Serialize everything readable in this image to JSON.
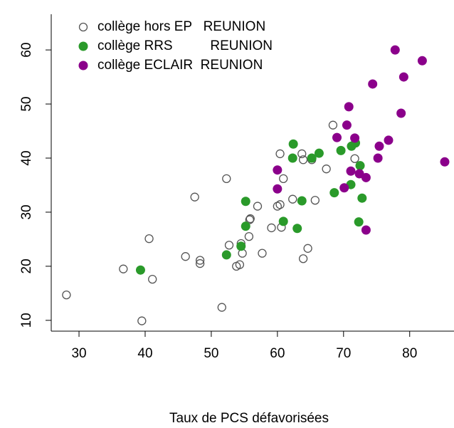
{
  "chart_data": {
    "type": "scatter",
    "xlabel": "Taux de PCS défavorisées",
    "xlim": [
      25.8,
      86.7
    ],
    "ylim": [
      8,
      66.6
    ],
    "xticks": [
      30,
      40,
      50,
      60,
      70,
      80
    ],
    "yticks": [
      10,
      20,
      30,
      40,
      50,
      60
    ],
    "legend": "top-left",
    "series": [
      {
        "name": "collège hors EP   REUNION",
        "color": "#555555",
        "marker": "open",
        "x": [
          28.1,
          36.7,
          39.5,
          40.6,
          41.1,
          46.1,
          48.3,
          48.3,
          47.5,
          51.6,
          52.3,
          52.7,
          53.8,
          54.3,
          54.5,
          54.7,
          55.7,
          55.8,
          55.9,
          57.0,
          57.7,
          59.1,
          60.0,
          60.4,
          60.4,
          60.6,
          60.9,
          62.3,
          63.7,
          63.9,
          63.9,
          64.6,
          65.2,
          65.7,
          67.4,
          68.4,
          71.7
        ],
        "values": [
          14.7,
          19.5,
          9.9,
          25.1,
          17.6,
          21.8,
          21.1,
          20.5,
          32.8,
          12.4,
          36.2,
          23.9,
          20.0,
          20.3,
          24.2,
          22.4,
          25.5,
          28.6,
          28.8,
          31.1,
          22.4,
          27.1,
          31.1,
          31.4,
          40.8,
          27.2,
          36.2,
          32.4,
          40.8,
          21.4,
          39.7,
          23.3,
          39.7,
          32.2,
          38.0,
          46.1,
          39.9
        ]
      },
      {
        "name": "collège RRS          REUNION",
        "color": "#2a9a2a",
        "marker": "filled",
        "x": [
          39.3,
          52.3,
          54.5,
          55.2,
          55.2,
          60.9,
          62.3,
          62.4,
          63.0,
          63.7,
          65.2,
          66.3,
          68.6,
          69.6,
          71.1,
          71.2,
          71.8,
          72.3,
          72.5,
          72.8
        ],
        "values": [
          19.3,
          22.1,
          23.7,
          32.0,
          27.4,
          28.3,
          40.0,
          42.6,
          27.0,
          32.1,
          40.0,
          40.9,
          33.6,
          41.4,
          35.1,
          42.2,
          42.8,
          28.2,
          38.6,
          32.6
        ]
      },
      {
        "name": "collège ECLAIR  REUNION",
        "color": "#8b008b",
        "marker": "filled",
        "x": [
          60.0,
          60.0,
          69.0,
          70.1,
          70.5,
          70.8,
          71.1,
          71.7,
          72.4,
          73.4,
          73.4,
          75.2,
          75.4,
          76.8,
          74.4,
          77.8,
          78.7,
          79.1,
          81.9,
          85.3
        ],
        "values": [
          37.8,
          34.3,
          43.8,
          34.5,
          46.1,
          49.5,
          37.6,
          43.7,
          37.1,
          36.4,
          26.7,
          40.0,
          42.2,
          43.3,
          53.7,
          60.0,
          48.3,
          55.0,
          58.0,
          39.3
        ]
      }
    ]
  }
}
